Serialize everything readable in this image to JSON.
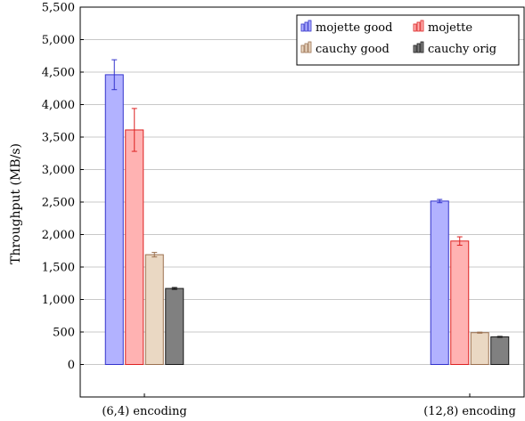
{
  "chart_data": {
    "type": "bar",
    "title": "",
    "xlabel": "",
    "ylabel": "Throughput (MB/s)",
    "ylim": [
      -500,
      5500
    ],
    "yticks": [
      0,
      500,
      1000,
      1500,
      2000,
      2500,
      3000,
      3500,
      4000,
      4500,
      5000,
      5500
    ],
    "ytick_labels": [
      "0",
      "500",
      "1,000",
      "1,500",
      "2,000",
      "2,500",
      "3,000",
      "3,500",
      "4,000",
      "4,500",
      "5,000",
      "5,500"
    ],
    "grid": "horizontal",
    "legend_position": "top-right",
    "categories": [
      "(6,4) encoding",
      "(12,8) encoding"
    ],
    "series": [
      {
        "name": "mojette good",
        "color": "#b2b2ff",
        "edge": "#3333cc",
        "values": [
          4460,
          2515
        ],
        "errors": [
          230,
          25
        ]
      },
      {
        "name": "mojette",
        "color": "#ffb2b2",
        "edge": "#dd2222",
        "values": [
          3610,
          1900
        ],
        "errors": [
          330,
          65
        ]
      },
      {
        "name": "cauchy good",
        "color": "#ead8c3",
        "edge": "#9b7150",
        "values": [
          1690,
          490
        ],
        "errors": [
          35,
          8
        ]
      },
      {
        "name": "cauchy orig",
        "color": "#808080",
        "edge": "#1a1a1a",
        "values": [
          1170,
          425
        ],
        "errors": [
          15,
          8
        ]
      }
    ]
  }
}
